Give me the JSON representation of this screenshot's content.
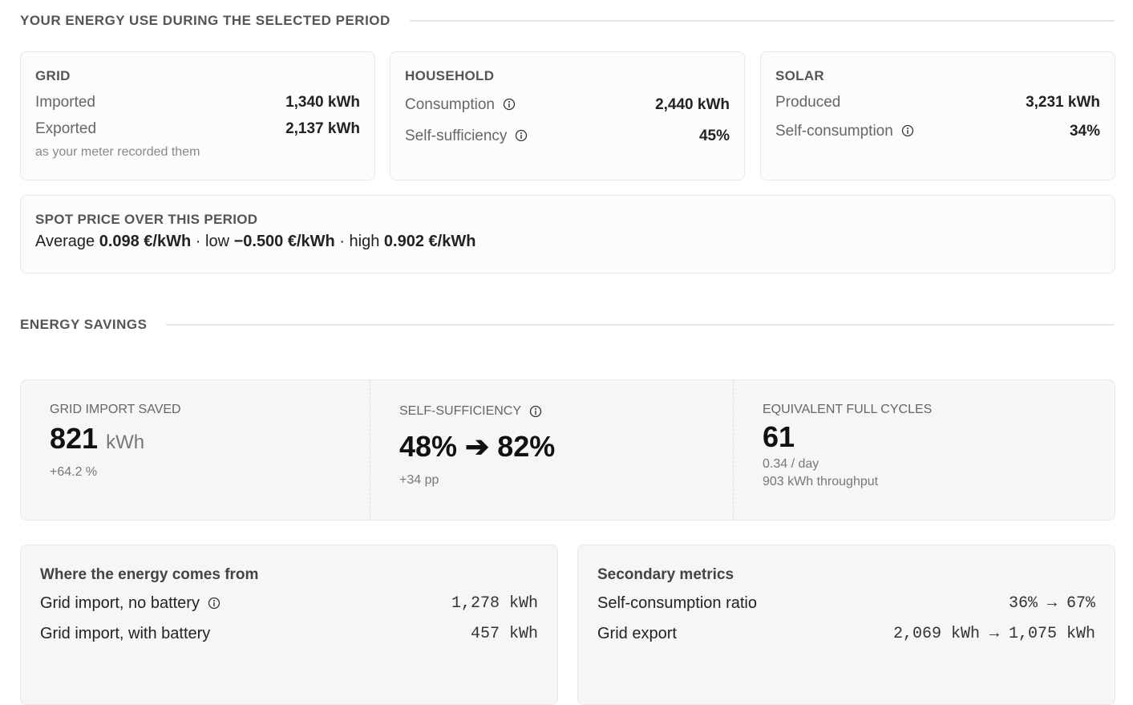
{
  "usage": {
    "title": "YOUR ENERGY USE DURING THE SELECTED PERIOD",
    "cards": [
      {
        "title": "GRID",
        "rows": [
          [
            "Imported",
            "1,340 kWh"
          ],
          [
            "Exported",
            "2,137 kWh"
          ]
        ],
        "note": "as your meter recorded them"
      },
      {
        "title": "HOUSEHOLD",
        "rows": [
          [
            "Consumption",
            "2,440 kWh"
          ],
          [
            "Self-sufficiency",
            "45%"
          ]
        ]
      },
      {
        "title": "SOLAR",
        "rows": [
          [
            "Produced",
            "3,231 kWh"
          ],
          [
            "Self-consumption",
            "34%"
          ]
        ]
      }
    ],
    "spot": {
      "title": "SPOT PRICE OVER THIS PERIOD",
      "parts": [
        "Average",
        "0.098 €/kWh",
        "· low",
        "−0.500 €/kWh",
        "· high",
        "0.902 €/kWh"
      ]
    }
  },
  "savings": {
    "title": "ENERGY SAVINGS",
    "kpis": [
      {
        "label": "GRID IMPORT SAVED",
        "value": "821",
        "unit": "kWh",
        "subs": [
          "+64.2 %"
        ]
      },
      {
        "label": "SELF-SUFFICIENCY",
        "value": "48% ➔ 82%",
        "subs": [
          "+34 pp"
        ]
      },
      {
        "label": "EQUIVALENT FULL CYCLES",
        "value": "61",
        "subs": [
          "0.34 / day",
          "903 kWh throughput"
        ]
      }
    ],
    "panels": [
      {
        "title": "Where the energy comes from",
        "rows": [
          [
            "Grid import, no battery",
            "1,278 kWh"
          ],
          [
            "Grid import, with battery",
            "457 kWh"
          ]
        ]
      },
      {
        "title": "Secondary metrics",
        "rows": [
          [
            "Self-consumption ratio",
            "36% → 67%"
          ],
          [
            "Grid export",
            "2,069 kWh → 1,075 kWh"
          ]
        ]
      }
    ]
  }
}
